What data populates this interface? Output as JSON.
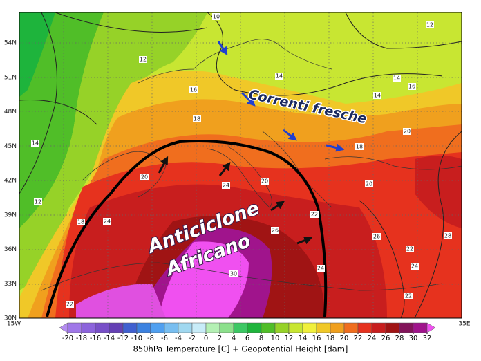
{
  "map": {
    "lat_labels": [
      "54N",
      "51N",
      "48N",
      "45N",
      "42N",
      "39N",
      "36N",
      "33N",
      "30N"
    ],
    "lon_labels": [
      "15W",
      "35E"
    ],
    "annotations": {
      "top": "Correnti fresche",
      "center": [
        "Anticiclone",
        "Africano"
      ]
    },
    "contour_labels": [
      10,
      12,
      12,
      14,
      16,
      18,
      14,
      16,
      14,
      18,
      20,
      20,
      22,
      24,
      24,
      26,
      28,
      20,
      24,
      22,
      30,
      26,
      12,
      14,
      18,
      20,
      22,
      24,
      22
    ],
    "colorbar": {
      "title": "850hPa Temperature [C] + Geopotential Height [dam]",
      "ticks": [
        -20,
        -18,
        -16,
        -14,
        -12,
        -10,
        -8,
        -6,
        -4,
        -2,
        0,
        2,
        4,
        6,
        8,
        10,
        12,
        14,
        16,
        18,
        20,
        22,
        24,
        26,
        28,
        30,
        32
      ],
      "colors": [
        "#b48cf0",
        "#a078e8",
        "#8c64dc",
        "#7850c8",
        "#6440b4",
        "#4060d0",
        "#3c82e0",
        "#50a0f0",
        "#78bef0",
        "#a0d8f0",
        "#c8ecf8",
        "#b4f0b4",
        "#8ce08c",
        "#3cc864",
        "#1eb43c",
        "#50be28",
        "#96d228",
        "#c8e632",
        "#f0f03c",
        "#f0c828",
        "#f0a01e",
        "#f06e1e",
        "#e6321e",
        "#c81e1e",
        "#a01414",
        "#82145a",
        "#a0148c",
        "#f050f0"
      ]
    }
  }
}
